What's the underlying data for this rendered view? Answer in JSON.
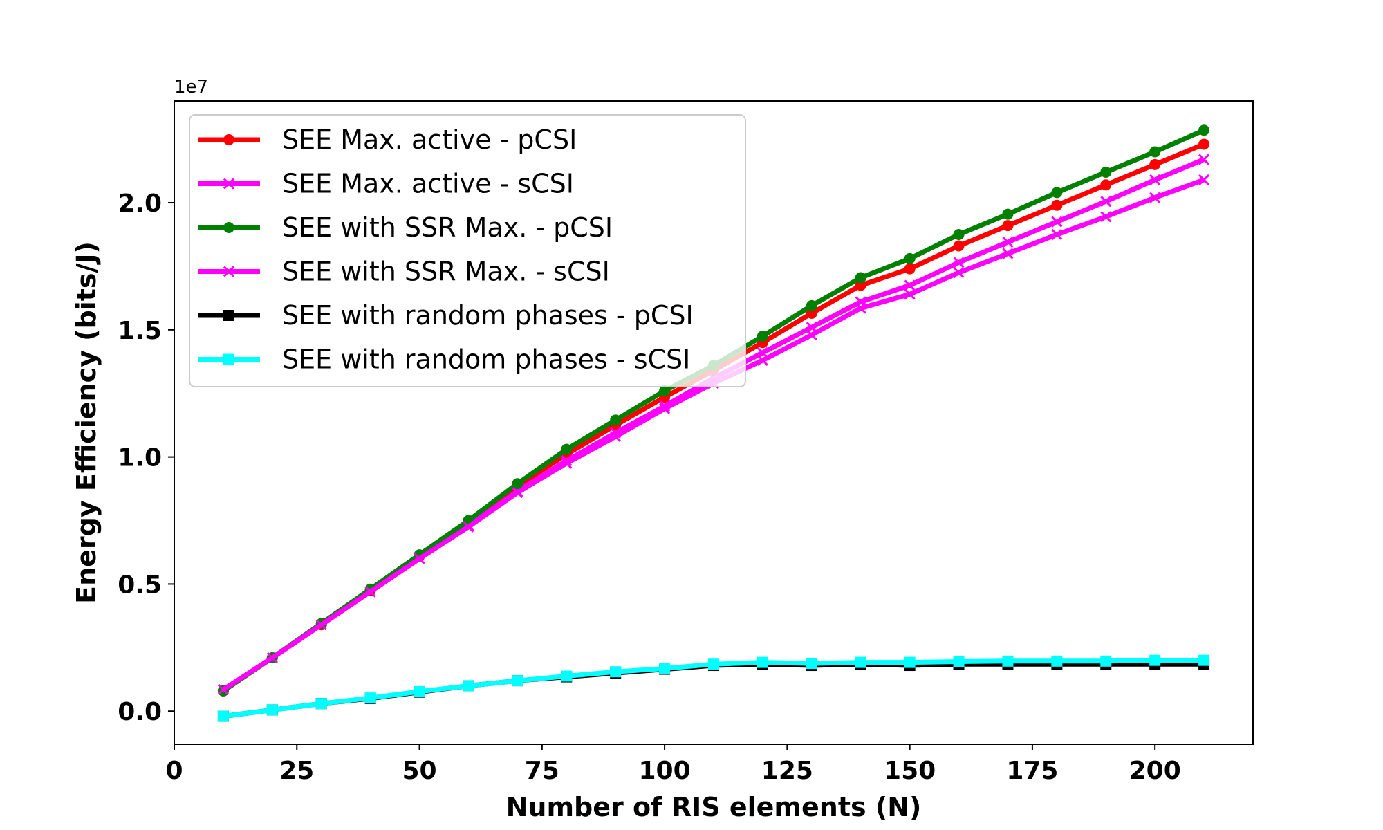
{
  "chart_data": {
    "type": "line",
    "title": "",
    "xlabel": "Number of RIS elements (N)",
    "ylabel": "Energy Efficiency (bits/J)",
    "y_offset_label": "1e7",
    "xlim": [
      0,
      220
    ],
    "ylim": [
      -0.13,
      2.4
    ],
    "x_ticks": [
      0,
      25,
      50,
      75,
      100,
      125,
      150,
      175,
      200
    ],
    "x_tick_labels": [
      "0",
      "25",
      "50",
      "75",
      "100",
      "125",
      "150",
      "175",
      "200"
    ],
    "y_ticks": [
      0.0,
      0.5,
      1.0,
      1.5,
      2.0
    ],
    "y_tick_labels": [
      "0.0",
      "0.5",
      "1.0",
      "1.5",
      "2.0"
    ],
    "legend_position": "upper-left",
    "grid": false,
    "x": [
      10,
      20,
      30,
      40,
      50,
      60,
      70,
      80,
      90,
      100,
      110,
      120,
      130,
      140,
      150,
      160,
      170,
      180,
      190,
      200,
      210
    ],
    "series": [
      {
        "name": "SEE Max. active - pCSI",
        "color": "#ff0000",
        "marker": "circle",
        "values": [
          0.08,
          0.21,
          0.34,
          0.475,
          0.61,
          0.745,
          0.885,
          1.01,
          1.125,
          1.235,
          1.34,
          1.45,
          1.565,
          1.675,
          1.74,
          1.83,
          1.91,
          1.99,
          2.07,
          2.15,
          2.23
        ]
      },
      {
        "name": "SEE Max. active - sCSI",
        "color": "#ff00ff",
        "marker": "x",
        "values": [
          0.085,
          0.21,
          0.34,
          0.47,
          0.6,
          0.73,
          0.865,
          0.985,
          1.095,
          1.2,
          1.31,
          1.41,
          1.51,
          1.61,
          1.675,
          1.765,
          1.845,
          1.925,
          2.005,
          2.09,
          2.17
        ]
      },
      {
        "name": "SEE with SSR Max. - pCSI",
        "color": "#008000",
        "marker": "circle",
        "values": [
          0.08,
          0.21,
          0.345,
          0.48,
          0.615,
          0.75,
          0.895,
          1.03,
          1.145,
          1.26,
          1.36,
          1.475,
          1.595,
          1.705,
          1.78,
          1.875,
          1.955,
          2.04,
          2.12,
          2.2,
          2.285
        ]
      },
      {
        "name": "SEE with SSR Max. - sCSI",
        "color": "#ff00ff",
        "marker": "x",
        "values": [
          0.085,
          0.21,
          0.34,
          0.47,
          0.6,
          0.725,
          0.86,
          0.975,
          1.08,
          1.19,
          1.29,
          1.38,
          1.48,
          1.585,
          1.64,
          1.725,
          1.8,
          1.875,
          1.945,
          2.02,
          2.09
        ]
      },
      {
        "name": "SEE with random phases - pCSI",
        "color": "#000000",
        "marker": "square",
        "values": [
          -0.02,
          0.005,
          0.03,
          0.05,
          0.075,
          0.1,
          0.12,
          0.135,
          0.15,
          0.165,
          0.18,
          0.185,
          0.18,
          0.185,
          0.18,
          0.185,
          0.185,
          0.185,
          0.185,
          0.185,
          0.185
        ]
      },
      {
        "name": "SEE with random phases - sCSI",
        "color": "#00ffff",
        "marker": "square",
        "values": [
          -0.02,
          0.005,
          0.03,
          0.052,
          0.077,
          0.1,
          0.12,
          0.138,
          0.155,
          0.168,
          0.185,
          0.192,
          0.188,
          0.192,
          0.192,
          0.195,
          0.197,
          0.197,
          0.197,
          0.2,
          0.2
        ]
      }
    ]
  }
}
